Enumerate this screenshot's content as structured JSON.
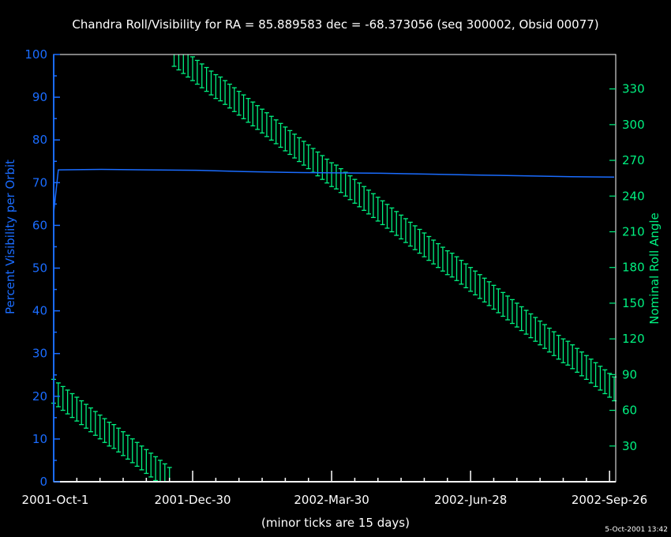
{
  "chart_data": {
    "type": "line",
    "title": "Chandra Roll/Visibility for RA = 85.889583 dec = -68.373056 (seq 300002, Obsid 00077)",
    "xlabel": "(minor ticks are 15 days)",
    "ylabel_left": "Percent Visibility per Orbit",
    "ylabel_right": "Nominal Roll Angle",
    "x_tick_labels": [
      "2001-Oct-1",
      "2001-Dec-30",
      "2002-Mar-30",
      "2002-Jun-28",
      "2002-Sep-26"
    ],
    "x_tick_dates": [
      "2001-10-01",
      "2001-12-30",
      "2002-03-30",
      "2002-06-28",
      "2002-09-26"
    ],
    "xlim": [
      "2001-10-01",
      "2002-09-30"
    ],
    "ylim_left": [
      0,
      100
    ],
    "yticks_left": [
      "0",
      "10",
      "20",
      "30",
      "40",
      "50",
      "60",
      "70",
      "80",
      "90",
      "100"
    ],
    "ylim_right": [
      0,
      360
    ],
    "yticks_right": [
      "30",
      "60",
      "90",
      "120",
      "150",
      "180",
      "210",
      "240",
      "270",
      "300",
      "330"
    ],
    "grid": false,
    "colors": {
      "visibility": "#1a6cff",
      "roll": "#00f080",
      "axes": "#ffffff",
      "background": "#000000"
    },
    "visibility": {
      "dates": [
        "2001-10-01",
        "2001-10-04",
        "2001-11-01",
        "2001-12-01",
        "2002-01-01",
        "2002-02-01",
        "2002-03-01",
        "2002-04-01",
        "2002-05-01",
        "2002-06-01",
        "2002-07-01",
        "2002-08-01",
        "2002-09-01",
        "2002-09-29"
      ],
      "values": [
        63,
        73,
        73.1,
        73,
        72.9,
        72.6,
        72.4,
        72.3,
        72.2,
        72,
        71.8,
        71.6,
        71.4,
        71.3
      ]
    },
    "roll": {
      "error_deg": 10,
      "dates": [
        "2001-10-01",
        "2001-10-04",
        "2001-10-07",
        "2001-10-10",
        "2001-10-13",
        "2001-10-16",
        "2001-10-19",
        "2001-10-22",
        "2001-10-25",
        "2001-10-28",
        "2001-10-31",
        "2001-11-03",
        "2001-11-06",
        "2001-11-09",
        "2001-11-12",
        "2001-11-15",
        "2001-11-18",
        "2001-11-21",
        "2001-11-24",
        "2001-11-27",
        "2001-11-30",
        "2001-12-03",
        "2001-12-06",
        "2001-12-09",
        "2001-12-12",
        "2001-12-15",
        "2001-12-18",
        "2001-12-21",
        "2001-12-24",
        "2001-12-27",
        "2001-12-30",
        "2002-01-02",
        "2002-01-05",
        "2002-01-08",
        "2002-01-11",
        "2002-01-14",
        "2002-01-17",
        "2002-01-20",
        "2002-01-23",
        "2002-01-26",
        "2002-01-29",
        "2002-02-01",
        "2002-02-04",
        "2002-02-07",
        "2002-02-10",
        "2002-02-13",
        "2002-02-16",
        "2002-02-19",
        "2002-02-22",
        "2002-02-25",
        "2002-02-28",
        "2002-03-03",
        "2002-03-06",
        "2002-03-09",
        "2002-03-12",
        "2002-03-15",
        "2002-03-18",
        "2002-03-21",
        "2002-03-24",
        "2002-03-27",
        "2002-03-30",
        "2002-04-02",
        "2002-04-05",
        "2002-04-08",
        "2002-04-11",
        "2002-04-14",
        "2002-04-17",
        "2002-04-20",
        "2002-04-23",
        "2002-04-26",
        "2002-04-29",
        "2002-05-02",
        "2002-05-05",
        "2002-05-08",
        "2002-05-11",
        "2002-05-14",
        "2002-05-17",
        "2002-05-20",
        "2002-05-23",
        "2002-05-26",
        "2002-05-29",
        "2002-06-01",
        "2002-06-04",
        "2002-06-07",
        "2002-06-10",
        "2002-06-13",
        "2002-06-16",
        "2002-06-19",
        "2002-06-22",
        "2002-06-25",
        "2002-06-28",
        "2002-07-01",
        "2002-07-04",
        "2002-07-07",
        "2002-07-10",
        "2002-07-13",
        "2002-07-16",
        "2002-07-19",
        "2002-07-22",
        "2002-07-25",
        "2002-07-28",
        "2002-07-31",
        "2002-08-03",
        "2002-08-06",
        "2002-08-09",
        "2002-08-12",
        "2002-08-15",
        "2002-08-18",
        "2002-08-21",
        "2002-08-24",
        "2002-08-27",
        "2002-08-30",
        "2002-09-02",
        "2002-09-05",
        "2002-09-08",
        "2002-09-11",
        "2002-09-14",
        "2002-09-17",
        "2002-09-20",
        "2002-09-23",
        "2002-09-26",
        "2002-09-29"
      ],
      "values": [
        76,
        73,
        70,
        67,
        64,
        61,
        58,
        55,
        52,
        49,
        46,
        43,
        40,
        38,
        35,
        32,
        29,
        26,
        23,
        20,
        17,
        14,
        11,
        8,
        5,
        2,
        359,
        356,
        353,
        350,
        347,
        344,
        341,
        338,
        335,
        332,
        330,
        327,
        324,
        321,
        318,
        315,
        312,
        309,
        306,
        303,
        300,
        297,
        294,
        291,
        288,
        285,
        282,
        279,
        276,
        273,
        270,
        267,
        264,
        261,
        258,
        256,
        253,
        250,
        247,
        244,
        241,
        238,
        235,
        232,
        229,
        226,
        223,
        220,
        217,
        214,
        211,
        208,
        205,
        202,
        199,
        196,
        193,
        190,
        187,
        184,
        182,
        179,
        176,
        173,
        170,
        167,
        164,
        161,
        158,
        155,
        152,
        149,
        146,
        143,
        140,
        137,
        134,
        131,
        128,
        125,
        122,
        119,
        116,
        113,
        110,
        108,
        105,
        102,
        99,
        96,
        93,
        90,
        87,
        84,
        81,
        78
      ]
    }
  },
  "footer": {
    "timestamp": "5-Oct-2001 13:42"
  }
}
